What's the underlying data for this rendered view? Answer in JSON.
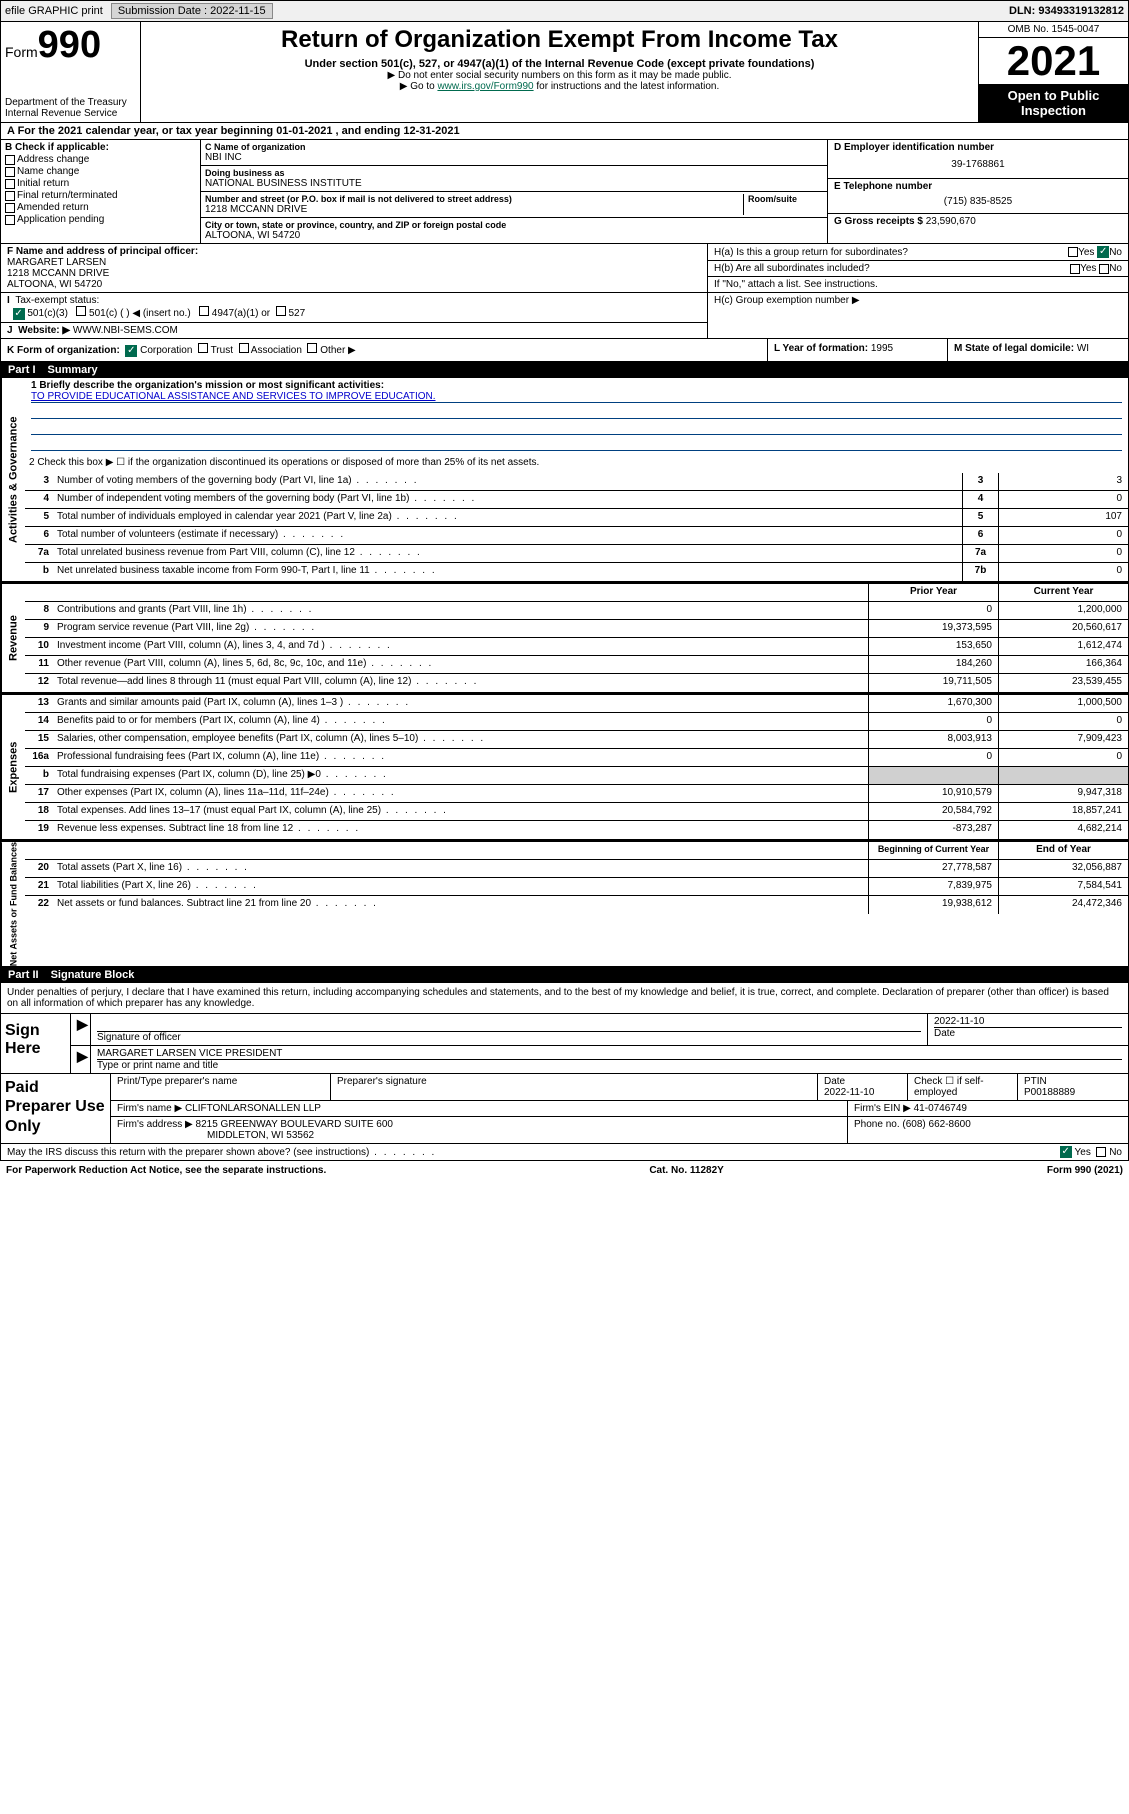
{
  "meta": {
    "efile": "efile GRAPHIC print",
    "submission_label": "Submission Date : 2022-11-15",
    "dln": "DLN: 93493319132812"
  },
  "header": {
    "form_word": "Form",
    "form_num": "990",
    "dept": "Department of the Treasury",
    "irs": "Internal Revenue Service",
    "title": "Return of Organization Exempt From Income Tax",
    "sub1": "Under section 501(c), 527, or 4947(a)(1) of the Internal Revenue Code (except private foundations)",
    "sub2": "▶ Do not enter social security numbers on this form as it may be made public.",
    "sub3_pre": "▶ Go to ",
    "sub3_link": "www.irs.gov/Form990",
    "sub3_post": " for instructions and the latest information.",
    "omb": "OMB No. 1545-0047",
    "year": "2021",
    "open": "Open to Public Inspection"
  },
  "row_a": "A For the 2021 calendar year, or tax year beginning 01-01-2021    , and ending 12-31-2021",
  "col_b": {
    "title": "B Check if applicable:",
    "items": [
      "Address change",
      "Name change",
      "Initial return",
      "Final return/terminated",
      "Amended return",
      "Application pending"
    ]
  },
  "col_c": {
    "name_lbl": "C Name of organization",
    "name": "NBI INC",
    "dba_lbl": "Doing business as",
    "dba": "NATIONAL BUSINESS INSTITUTE",
    "addr_lbl": "Number and street (or P.O. box if mail is not delivered to street address)",
    "room_lbl": "Room/suite",
    "addr": "1218 MCCANN DRIVE",
    "city_lbl": "City or town, state or province, country, and ZIP or foreign postal code",
    "city": "ALTOONA, WI  54720"
  },
  "col_de": {
    "d_lbl": "D Employer identification number",
    "d_val": "39-1768861",
    "e_lbl": "E Telephone number",
    "e_val": "(715) 835-8525",
    "g_lbl": "G Gross receipts $",
    "g_val": "23,590,670"
  },
  "row_f": {
    "lbl": "F Name and address of principal officer:",
    "name": "MARGARET LARSEN",
    "addr1": "1218 MCCANN DRIVE",
    "addr2": "ALTOONA, WI  54720"
  },
  "row_i": {
    "lbl": "Tax-exempt status:",
    "opt1": "501(c)(3)",
    "opt2": "501(c) (  ) ◀ (insert no.)",
    "opt3": "4947(a)(1) or",
    "opt4": "527"
  },
  "row_j": {
    "lbl": "Website: ▶",
    "val": "WWW.NBI-SEMS.COM"
  },
  "row_h": {
    "ha": "H(a)  Is this a group return for subordinates?",
    "hb": "H(b)  Are all subordinates included?",
    "hb2": "If \"No,\" attach a list. See instructions.",
    "hc": "H(c)  Group exemption number ▶",
    "yes": "Yes",
    "no": "No"
  },
  "row_k": {
    "lbl": "K Form of organization:",
    "opts": [
      "Corporation",
      "Trust",
      "Association",
      "Other ▶"
    ]
  },
  "row_l": {
    "lbl": "L Year of formation:",
    "val": "1995"
  },
  "row_m": {
    "lbl": "M State of legal domicile:",
    "val": "WI"
  },
  "part1": {
    "num": "Part I",
    "title": "Summary"
  },
  "mission": {
    "q": "1  Briefly describe the organization's mission or most significant activities:",
    "a": "TO PROVIDE EDUCATIONAL ASSISTANCE AND SERVICES TO IMPROVE EDUCATION."
  },
  "line2": "2   Check this box ▶ ☐  if the organization discontinued its operations or disposed of more than 25% of its net assets.",
  "sections": {
    "activities": {
      "label": "Activities & Governance",
      "rows": [
        {
          "n": "3",
          "d": "Number of voting members of the governing body (Part VI, line 1a)",
          "box": "3",
          "v": "3"
        },
        {
          "n": "4",
          "d": "Number of independent voting members of the governing body (Part VI, line 1b)",
          "box": "4",
          "v": "0"
        },
        {
          "n": "5",
          "d": "Total number of individuals employed in calendar year 2021 (Part V, line 2a)",
          "box": "5",
          "v": "107"
        },
        {
          "n": "6",
          "d": "Total number of volunteers (estimate if necessary)",
          "box": "6",
          "v": "0"
        },
        {
          "n": "7a",
          "d": "Total unrelated business revenue from Part VIII, column (C), line 12",
          "box": "7a",
          "v": "0"
        },
        {
          "n": "b",
          "d": "Net unrelated business taxable income from Form 990-T, Part I, line 11",
          "box": "7b",
          "v": "0"
        }
      ]
    },
    "revenue": {
      "label": "Revenue",
      "hdr_prior": "Prior Year",
      "hdr_curr": "Current Year",
      "rows": [
        {
          "n": "8",
          "d": "Contributions and grants (Part VIII, line 1h)",
          "p": "0",
          "c": "1,200,000"
        },
        {
          "n": "9",
          "d": "Program service revenue (Part VIII, line 2g)",
          "p": "19,373,595",
          "c": "20,560,617"
        },
        {
          "n": "10",
          "d": "Investment income (Part VIII, column (A), lines 3, 4, and 7d )",
          "p": "153,650",
          "c": "1,612,474"
        },
        {
          "n": "11",
          "d": "Other revenue (Part VIII, column (A), lines 5, 6d, 8c, 9c, 10c, and 11e)",
          "p": "184,260",
          "c": "166,364"
        },
        {
          "n": "12",
          "d": "Total revenue—add lines 8 through 11 (must equal Part VIII, column (A), line 12)",
          "p": "19,711,505",
          "c": "23,539,455"
        }
      ]
    },
    "expenses": {
      "label": "Expenses",
      "rows": [
        {
          "n": "13",
          "d": "Grants and similar amounts paid (Part IX, column (A), lines 1–3 )",
          "p": "1,670,300",
          "c": "1,000,500"
        },
        {
          "n": "14",
          "d": "Benefits paid to or for members (Part IX, column (A), line 4)",
          "p": "0",
          "c": "0"
        },
        {
          "n": "15",
          "d": "Salaries, other compensation, employee benefits (Part IX, column (A), lines 5–10)",
          "p": "8,003,913",
          "c": "7,909,423"
        },
        {
          "n": "16a",
          "d": "Professional fundraising fees (Part IX, column (A), line 11e)",
          "p": "0",
          "c": "0"
        },
        {
          "n": "b",
          "d": "Total fundraising expenses (Part IX, column (D), line 25) ▶0",
          "p": "",
          "c": "",
          "gray": true
        },
        {
          "n": "17",
          "d": "Other expenses (Part IX, column (A), lines 11a–11d, 11f–24e)",
          "p": "10,910,579",
          "c": "9,947,318"
        },
        {
          "n": "18",
          "d": "Total expenses. Add lines 13–17 (must equal Part IX, column (A), line 25)",
          "p": "20,584,792",
          "c": "18,857,241"
        },
        {
          "n": "19",
          "d": "Revenue less expenses. Subtract line 18 from line 12",
          "p": "-873,287",
          "c": "4,682,214"
        }
      ]
    },
    "netassets": {
      "label": "Net Assets or Fund Balances",
      "hdr_beg": "Beginning of Current Year",
      "hdr_end": "End of Year",
      "rows": [
        {
          "n": "20",
          "d": "Total assets (Part X, line 16)",
          "p": "27,778,587",
          "c": "32,056,887"
        },
        {
          "n": "21",
          "d": "Total liabilities (Part X, line 26)",
          "p": "7,839,975",
          "c": "7,584,541"
        },
        {
          "n": "22",
          "d": "Net assets or fund balances. Subtract line 21 from line 20",
          "p": "19,938,612",
          "c": "24,472,346"
        }
      ]
    }
  },
  "part2": {
    "num": "Part II",
    "title": "Signature Block"
  },
  "sig_intro": "Under penalties of perjury, I declare that I have examined this return, including accompanying schedules and statements, and to the best of my knowledge and belief, it is true, correct, and complete. Declaration of preparer (other than officer) is based on all information of which preparer has any knowledge.",
  "sign": {
    "here": "Sign Here",
    "sig_lbl": "Signature of officer",
    "date_lbl": "Date",
    "date": "2022-11-10",
    "name": "MARGARET LARSEN  VICE PRESIDENT",
    "type_lbl": "Type or print name and title"
  },
  "prep": {
    "title": "Paid Preparer Use Only",
    "h_name": "Print/Type preparer's name",
    "h_sig": "Preparer's signature",
    "h_date": "Date",
    "date": "2022-11-10",
    "h_check": "Check ☐ if self-employed",
    "h_ptin": "PTIN",
    "ptin": "P00188889",
    "firm_lbl": "Firm's name    ▶",
    "firm": "CLIFTONLARSONALLEN LLP",
    "ein_lbl": "Firm's EIN ▶",
    "ein": "41-0746749",
    "addr_lbl": "Firm's address ▶",
    "addr1": "8215 GREENWAY BOULEVARD SUITE 600",
    "addr2": "MIDDLETON, WI  53562",
    "phone_lbl": "Phone no.",
    "phone": "(608) 662-8600"
  },
  "discuss": {
    "q": "May the IRS discuss this return with the preparer shown above? (see instructions)",
    "yes": "Yes",
    "no": "No"
  },
  "footer": {
    "paperwork": "For Paperwork Reduction Act Notice, see the separate instructions.",
    "cat": "Cat. No. 11282Y",
    "form": "Form 990 (2021)"
  },
  "colors": {
    "text": "#000000",
    "bg": "#ffffff",
    "topbar": "#f0f0f0",
    "header_black": "#000000",
    "link_green": "#006a4e",
    "line_blue": "#004080",
    "gray_cell": "#d0d0d0",
    "link_blue": "#0000cc"
  }
}
